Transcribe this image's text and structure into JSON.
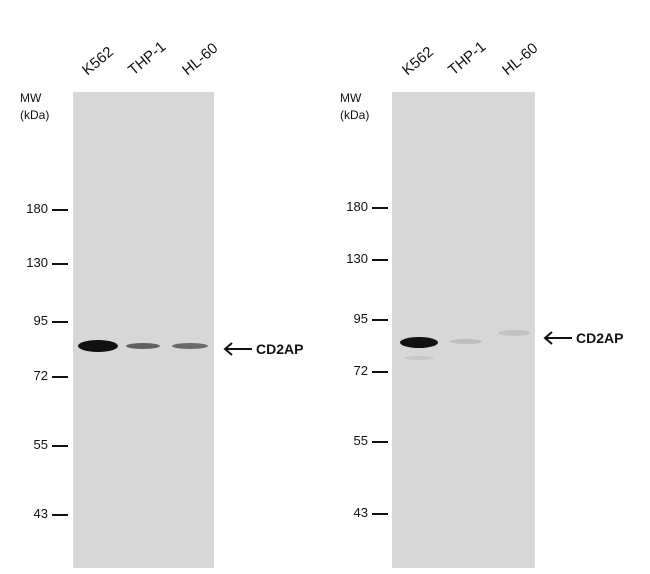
{
  "blots": [
    {
      "lanes": [
        "K562",
        "THP-1",
        "HL-60"
      ],
      "mw_title": "MW",
      "mw_unit": "(kDa)",
      "markers": [
        "180",
        "130",
        "95",
        "72",
        "55",
        "43"
      ],
      "target_label": "CD2AP"
    },
    {
      "lanes": [
        "K562",
        "THP-1",
        "HL-60"
      ],
      "mw_title": "MW",
      "mw_unit": "(kDa)",
      "markers": [
        "180",
        "130",
        "95",
        "72",
        "55",
        "43"
      ],
      "target_label": "CD2AP"
    }
  ],
  "colors": {
    "membrane": "#d7d7d7",
    "band": "#111111"
  },
  "icons": {
    "pointer": "left-arrow-icon"
  }
}
